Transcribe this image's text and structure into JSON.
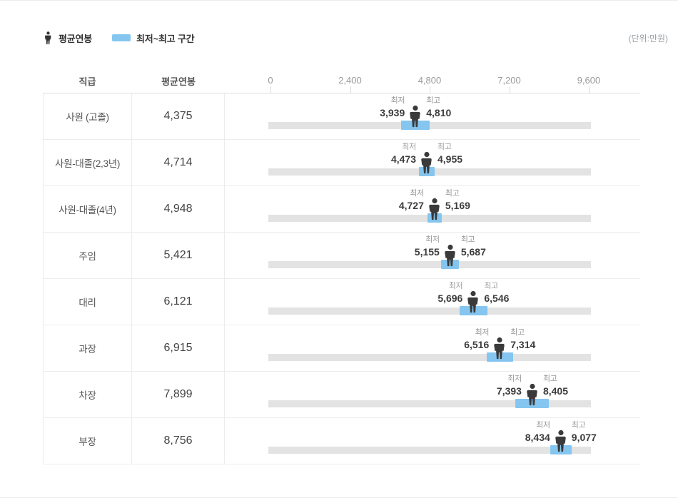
{
  "legend": {
    "avg_label": "평균연봉",
    "range_label": "최저~최고 구간",
    "unit_label": "(단위:만원)"
  },
  "table_header": {
    "position_col": "직급",
    "avg_col": "평균연봉"
  },
  "colors": {
    "range_blue": "#85c6f0",
    "track_gray": "#e3e3e3",
    "person_dark": "#3a3a3a"
  },
  "chart_data": {
    "type": "bar",
    "subtype": "horizontal-range-bar",
    "unit": "만원",
    "min_label": "최저",
    "max_label": "최고",
    "axis_ticks": [
      0,
      2400,
      4800,
      7200,
      9600
    ],
    "axis_tick_labels": [
      "0",
      "2,400",
      "4,800",
      "7,200",
      "9,600"
    ],
    "axis_range": [
      0,
      9720
    ],
    "legend_position": "top-left",
    "grid": false,
    "rows": [
      {
        "position": "사원 (고졸)",
        "avg": 4375,
        "min": 3939,
        "max": 4810
      },
      {
        "position": "사원-대졸(2,3년)",
        "avg": 4714,
        "min": 4473,
        "max": 4955
      },
      {
        "position": "사원-대졸(4년)",
        "avg": 4948,
        "min": 4727,
        "max": 5169
      },
      {
        "position": "주임",
        "avg": 5421,
        "min": 5155,
        "max": 5687
      },
      {
        "position": "대리",
        "avg": 6121,
        "min": 5696,
        "max": 6546
      },
      {
        "position": "과장",
        "avg": 6915,
        "min": 6516,
        "max": 7314
      },
      {
        "position": "차장",
        "avg": 7899,
        "min": 7393,
        "max": 8405
      },
      {
        "position": "부장",
        "avg": 8756,
        "min": 8434,
        "max": 9077
      }
    ]
  }
}
